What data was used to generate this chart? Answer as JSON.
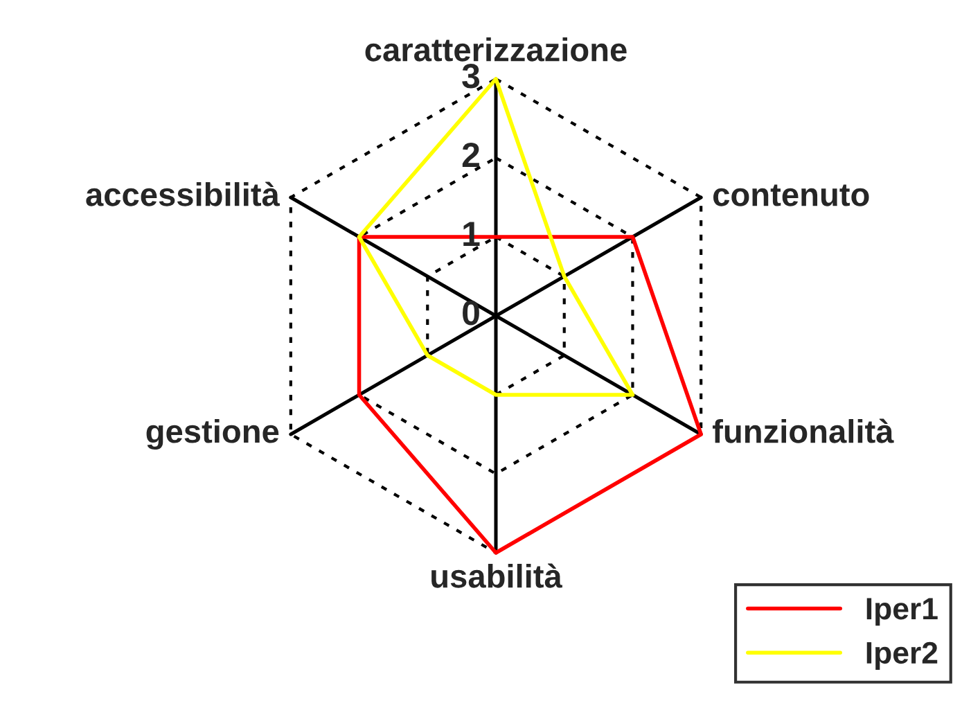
{
  "chart_data": {
    "type": "radar",
    "categories": [
      "caratterizzazione",
      "contenuto",
      "funzionalità",
      "usabilità",
      "gestione",
      "accessibilità"
    ],
    "series": [
      {
        "name": "Iper1",
        "color": "#ff0000",
        "values": [
          1,
          2,
          3,
          3,
          2,
          2
        ]
      },
      {
        "name": "Iper2",
        "color": "#ffff00",
        "values": [
          3,
          1,
          2,
          1,
          1,
          2
        ]
      }
    ],
    "ylim": [
      0,
      3
    ],
    "yticks": [
      0,
      1,
      2,
      3
    ],
    "grid": true,
    "legend": "bottom right",
    "marker": "none",
    "line_style": "solid"
  }
}
